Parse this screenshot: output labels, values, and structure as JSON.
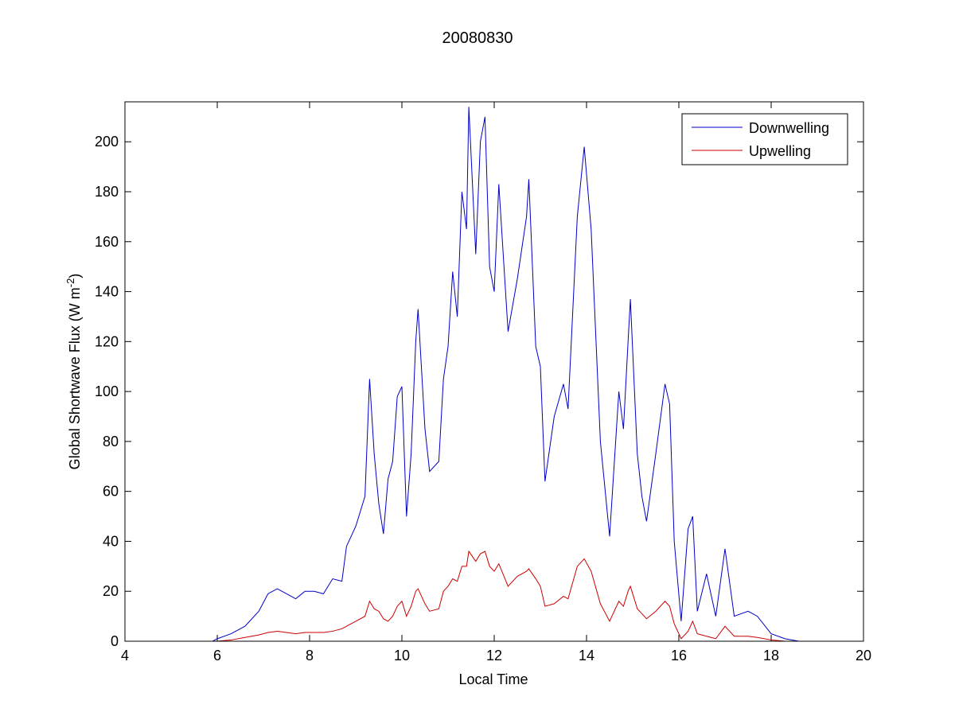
{
  "chart_data": {
    "type": "line",
    "title": "20080830",
    "xlabel": "Local Time",
    "ylabel": {
      "text": "Global Shortwave Flux (W m",
      "superscript": "-2",
      "suffix": ")"
    },
    "x": [
      4.0,
      5.1,
      5.9,
      6.0,
      6.3,
      6.6,
      6.9,
      7.1,
      7.3,
      7.5,
      7.7,
      7.9,
      8.1,
      8.3,
      8.5,
      8.7,
      8.8,
      9.0,
      9.2,
      9.3,
      9.4,
      9.5,
      9.6,
      9.7,
      9.8,
      9.9,
      10.0,
      10.1,
      10.2,
      10.3,
      10.35,
      10.5,
      10.6,
      10.8,
      10.9,
      11.0,
      11.1,
      11.2,
      11.3,
      11.4,
      11.45,
      11.6,
      11.7,
      11.8,
      11.9,
      12.0,
      12.1,
      12.3,
      12.5,
      12.7,
      12.75,
      12.9,
      13.0,
      13.1,
      13.3,
      13.5,
      13.6,
      13.8,
      13.95,
      14.1,
      14.3,
      14.5,
      14.7,
      14.8,
      14.9,
      14.95,
      15.1,
      15.2,
      15.3,
      15.5,
      15.7,
      15.8,
      15.9,
      16.05,
      16.2,
      16.3,
      16.4,
      16.6,
      16.8,
      17.0,
      17.2,
      17.5,
      17.7,
      18.0,
      18.3,
      18.6,
      19.6,
      20.0
    ],
    "series": [
      {
        "name": "Downwelling",
        "color": "#0000c8",
        "values": [
          0,
          0,
          0,
          1,
          3,
          6,
          12,
          19,
          21,
          19,
          17,
          20,
          20,
          19,
          25,
          24,
          38,
          46,
          58,
          105,
          75,
          55,
          43,
          65,
          72,
          98,
          102,
          50,
          75,
          120,
          133,
          85,
          68,
          72,
          105,
          118,
          148,
          130,
          180,
          165,
          214,
          155,
          200,
          210,
          150,
          140,
          183,
          124,
          145,
          170,
          185,
          118,
          110,
          64,
          90,
          103,
          93,
          170,
          198,
          165,
          80,
          42,
          100,
          85,
          120,
          137,
          75,
          58,
          48,
          75,
          103,
          95,
          40,
          8,
          45,
          50,
          12,
          27,
          10,
          37,
          10,
          12,
          10,
          3,
          1,
          0,
          0,
          0
        ]
      },
      {
        "name": "Upwelling",
        "color": "#cc0000",
        "values": [
          0,
          0,
          0,
          0,
          0.5,
          1.5,
          2.5,
          3.5,
          4,
          3.5,
          3,
          3.5,
          3.5,
          3.5,
          4,
          5,
          6,
          8,
          10,
          16,
          13,
          12,
          9,
          8,
          10,
          14,
          16,
          10,
          14,
          20,
          21,
          15,
          12,
          13,
          20,
          22,
          25,
          24,
          30,
          30,
          36,
          32,
          35,
          36,
          30,
          28,
          31,
          22,
          26,
          28,
          29,
          25,
          22,
          14,
          15,
          18,
          17,
          30,
          33,
          28,
          15,
          8,
          16,
          14,
          20,
          22,
          13,
          11,
          9,
          12,
          16,
          14,
          7,
          1,
          4,
          8,
          3,
          2,
          1,
          6,
          2,
          2,
          1.5,
          0.5,
          0,
          0,
          0,
          0
        ]
      }
    ],
    "xlim": [
      4,
      20
    ],
    "xticks": [
      4,
      6,
      8,
      10,
      12,
      14,
      16,
      18,
      20
    ],
    "ylim": [
      0,
      216
    ],
    "yticks": [
      0,
      20,
      40,
      60,
      80,
      100,
      120,
      140,
      160,
      180,
      200
    ],
    "legend": "top-right",
    "grid": false
  }
}
